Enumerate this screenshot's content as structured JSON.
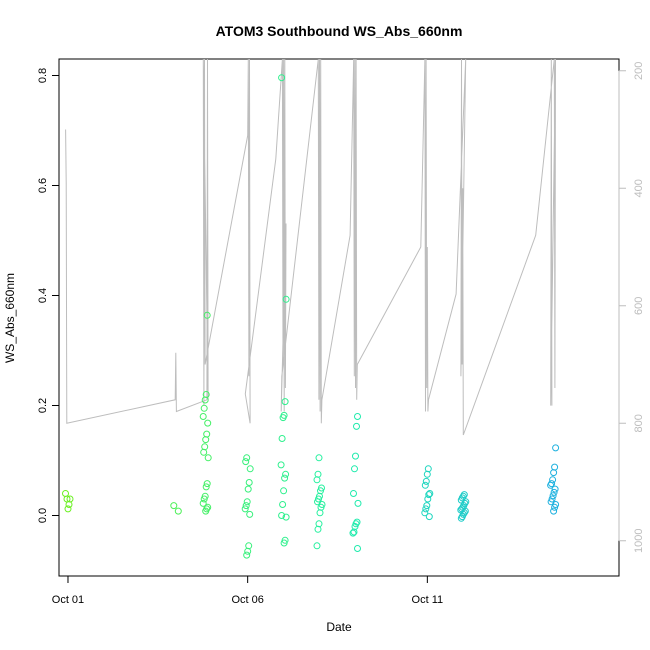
{
  "chart_data": {
    "type": "scatter",
    "title": "ATOM3 Southbound WS_Abs_660nm",
    "xlabel": "Date",
    "ylabel": "WS_Abs_660nm",
    "xlim": [
      "2016-09-30T18:00",
      "2016-10-16T08:00"
    ],
    "ylim": [
      -0.11,
      0.83
    ],
    "x_ticks": [
      {
        "date": "2016-10-01T00:00",
        "label": "Oct 01"
      },
      {
        "date": "2016-10-06T00:00",
        "label": "Oct 06"
      },
      {
        "date": "2016-10-11T00:00",
        "label": "Oct 11"
      }
    ],
    "y_ticks": [
      0.0,
      0.2,
      0.4,
      0.6,
      0.8
    ],
    "right_axis": {
      "label": "",
      "reversed": true,
      "ylim": [
        1060,
        180
      ],
      "ticks": [
        200,
        400,
        600,
        800,
        1000
      ],
      "color": "#bdbdbd"
    },
    "grid": false,
    "legend": "none",
    "colors": {
      "line": "#bdbdbd",
      "points_start": "#6ef01e",
      "points_mid": "#1ef0a8",
      "points_end": "#1e9ef0"
    },
    "series": [
      {
        "marker": "circle-open",
        "color_by": "time",
        "points": [
          [
            "2016-10-01T00:00",
            0.04
          ],
          [
            "2016-10-01T00:00",
            0.03
          ],
          [
            "2016-10-01T00:00",
            0.02
          ],
          [
            "2016-10-01T00:00",
            0.012
          ],
          [
            "2016-10-01T00:00",
            0.03
          ],
          [
            "2016-10-04T00:00",
            0.018
          ],
          [
            "2016-10-04T00:00",
            0.008
          ],
          [
            "2016-10-04T20:00",
            0.364
          ],
          [
            "2016-10-04T20:00",
            0.22
          ],
          [
            "2016-10-04T20:00",
            0.21
          ],
          [
            "2016-10-04T20:00",
            0.195
          ],
          [
            "2016-10-04T20:00",
            0.18
          ],
          [
            "2016-10-04T20:00",
            0.168
          ],
          [
            "2016-10-04T20:00",
            0.148
          ],
          [
            "2016-10-04T20:00",
            0.138
          ],
          [
            "2016-10-04T20:00",
            0.125
          ],
          [
            "2016-10-04T20:00",
            0.115
          ],
          [
            "2016-10-04T20:00",
            0.105
          ],
          [
            "2016-10-04T20:00",
            0.058
          ],
          [
            "2016-10-04T20:00",
            0.052
          ],
          [
            "2016-10-04T20:00",
            0.035
          ],
          [
            "2016-10-04T20:00",
            0.03
          ],
          [
            "2016-10-04T20:00",
            0.022
          ],
          [
            "2016-10-04T20:00",
            0.015
          ],
          [
            "2016-10-04T20:00",
            0.012
          ],
          [
            "2016-10-04T20:00",
            0.008
          ],
          [
            "2016-10-06T00:00",
            0.105
          ],
          [
            "2016-10-06T00:00",
            0.098
          ],
          [
            "2016-10-06T00:00",
            0.085
          ],
          [
            "2016-10-06T00:00",
            0.06
          ],
          [
            "2016-10-06T00:00",
            0.048
          ],
          [
            "2016-10-06T00:00",
            0.025
          ],
          [
            "2016-10-06T00:00",
            0.018
          ],
          [
            "2016-10-06T00:00",
            0.012
          ],
          [
            "2016-10-06T00:00",
            0.002
          ],
          [
            "2016-10-06T00:00",
            -0.055
          ],
          [
            "2016-10-06T00:00",
            -0.065
          ],
          [
            "2016-10-06T00:00",
            -0.072
          ],
          [
            "2016-10-07T00:00",
            0.796
          ],
          [
            "2016-10-07T00:00",
            0.393
          ],
          [
            "2016-10-07T00:00",
            0.207
          ],
          [
            "2016-10-07T00:00",
            0.182
          ],
          [
            "2016-10-07T00:00",
            0.178
          ],
          [
            "2016-10-07T00:00",
            0.14
          ],
          [
            "2016-10-07T00:00",
            0.092
          ],
          [
            "2016-10-07T00:00",
            0.075
          ],
          [
            "2016-10-07T00:00",
            0.068
          ],
          [
            "2016-10-07T00:00",
            0.045
          ],
          [
            "2016-10-07T00:00",
            0.02
          ],
          [
            "2016-10-07T00:00",
            0.0
          ],
          [
            "2016-10-07T00:00",
            -0.003
          ],
          [
            "2016-10-07T00:00",
            -0.045
          ],
          [
            "2016-10-07T00:00",
            -0.05
          ],
          [
            "2016-10-08T00:00",
            0.105
          ],
          [
            "2016-10-08T00:00",
            0.075
          ],
          [
            "2016-10-08T00:00",
            0.065
          ],
          [
            "2016-10-08T00:00",
            0.05
          ],
          [
            "2016-10-08T00:00",
            0.045
          ],
          [
            "2016-10-08T00:00",
            0.035
          ],
          [
            "2016-10-08T00:00",
            0.03
          ],
          [
            "2016-10-08T00:00",
            0.025
          ],
          [
            "2016-10-08T00:00",
            0.02
          ],
          [
            "2016-10-08T00:00",
            0.015
          ],
          [
            "2016-10-08T00:00",
            0.005
          ],
          [
            "2016-10-08T00:00",
            -0.015
          ],
          [
            "2016-10-08T00:00",
            -0.025
          ],
          [
            "2016-10-08T00:00",
            -0.055
          ],
          [
            "2016-10-09T00:00",
            0.18
          ],
          [
            "2016-10-09T00:00",
            0.162
          ],
          [
            "2016-10-09T00:00",
            0.108
          ],
          [
            "2016-10-09T00:00",
            0.085
          ],
          [
            "2016-10-09T00:00",
            0.04
          ],
          [
            "2016-10-09T00:00",
            0.022
          ],
          [
            "2016-10-09T00:00",
            -0.012
          ],
          [
            "2016-10-09T00:00",
            -0.015
          ],
          [
            "2016-10-09T00:00",
            -0.02
          ],
          [
            "2016-10-09T00:00",
            -0.03
          ],
          [
            "2016-10-09T00:00",
            -0.032
          ],
          [
            "2016-10-09T00:00",
            -0.06
          ],
          [
            "2016-10-11T00:00",
            0.085
          ],
          [
            "2016-10-11T00:00",
            0.075
          ],
          [
            "2016-10-11T00:00",
            0.062
          ],
          [
            "2016-10-11T00:00",
            0.055
          ],
          [
            "2016-10-11T00:00",
            0.04
          ],
          [
            "2016-10-11T00:00",
            0.038
          ],
          [
            "2016-10-11T00:00",
            0.03
          ],
          [
            "2016-10-11T00:00",
            0.018
          ],
          [
            "2016-10-11T00:00",
            0.012
          ],
          [
            "2016-10-11T00:00",
            0.005
          ],
          [
            "2016-10-11T00:00",
            -0.002
          ],
          [
            "2016-10-12T00:00",
            0.038
          ],
          [
            "2016-10-12T00:00",
            0.035
          ],
          [
            "2016-10-12T00:00",
            0.032
          ],
          [
            "2016-10-12T00:00",
            0.028
          ],
          [
            "2016-10-12T00:00",
            0.025
          ],
          [
            "2016-10-12T00:00",
            0.022
          ],
          [
            "2016-10-12T00:00",
            0.018
          ],
          [
            "2016-10-12T00:00",
            0.015
          ],
          [
            "2016-10-12T00:00",
            0.012
          ],
          [
            "2016-10-12T00:00",
            0.01
          ],
          [
            "2016-10-12T00:00",
            0.008
          ],
          [
            "2016-10-12T00:00",
            0.005
          ],
          [
            "2016-10-12T00:00",
            0.002
          ],
          [
            "2016-10-12T00:00",
            -0.002
          ],
          [
            "2016-10-12T00:00",
            -0.005
          ],
          [
            "2016-10-14T12:00",
            0.123
          ],
          [
            "2016-10-14T12:00",
            0.088
          ],
          [
            "2016-10-14T12:00",
            0.078
          ],
          [
            "2016-10-14T12:00",
            0.065
          ],
          [
            "2016-10-14T12:00",
            0.058
          ],
          [
            "2016-10-14T12:00",
            0.055
          ],
          [
            "2016-10-14T12:00",
            0.048
          ],
          [
            "2016-10-14T12:00",
            0.042
          ],
          [
            "2016-10-14T12:00",
            0.036
          ],
          [
            "2016-10-14T12:00",
            0.03
          ],
          [
            "2016-10-14T12:00",
            0.025
          ],
          [
            "2016-10-14T12:00",
            0.02
          ],
          [
            "2016-10-14T12:00",
            0.015
          ],
          [
            "2016-10-14T12:00",
            0.008
          ]
        ]
      },
      {
        "marker": "line",
        "axis": "right",
        "points": [
          [
            "2016-10-01T00:00",
            300
          ],
          [
            "2016-10-01T00:00",
            390
          ],
          [
            "2016-10-01T00:00",
            800
          ],
          [
            "2016-10-04T00:00",
            760
          ],
          [
            "2016-10-04T00:00",
            680
          ],
          [
            "2016-10-04T00:00",
            780
          ],
          [
            "2016-10-04T20:00",
            760
          ],
          [
            "2016-10-04T20:00",
            180
          ],
          [
            "2016-10-04T20:00",
            760
          ],
          [
            "2016-10-04T20:00",
            180
          ],
          [
            "2016-10-04T20:00",
            770
          ],
          [
            "2016-10-04T20:00",
            180
          ],
          [
            "2016-10-04T20:00",
            700
          ],
          [
            "2016-10-06T00:00",
            310
          ],
          [
            "2016-10-06T00:00",
            180
          ],
          [
            "2016-10-06T00:00",
            720
          ],
          [
            "2016-10-06T00:00",
            180
          ],
          [
            "2016-10-06T00:00",
            800
          ],
          [
            "2016-10-06T00:00",
            750
          ],
          [
            "2016-10-06T20:00",
            350
          ],
          [
            "2016-10-07T00:00",
            180
          ],
          [
            "2016-10-07T00:00",
            700
          ],
          [
            "2016-10-07T00:00",
            180
          ],
          [
            "2016-10-07T00:00",
            780
          ],
          [
            "2016-10-07T00:00",
            180
          ],
          [
            "2016-10-07T00:00",
            740
          ],
          [
            "2016-10-07T00:00",
            460
          ],
          [
            "2016-10-07T00:00",
            780
          ],
          [
            "2016-10-07T00:00",
            720
          ],
          [
            "2016-10-08T00:00",
            180
          ],
          [
            "2016-10-08T00:00",
            760
          ],
          [
            "2016-10-08T00:00",
            180
          ],
          [
            "2016-10-08T00:00",
            780
          ],
          [
            "2016-10-08T00:00",
            180
          ],
          [
            "2016-10-08T00:00",
            800
          ],
          [
            "2016-10-08T00:00",
            760
          ],
          [
            "2016-10-08T22:00",
            480
          ],
          [
            "2016-10-09T00:00",
            180
          ],
          [
            "2016-10-09T00:00",
            720
          ],
          [
            "2016-10-09T00:00",
            180
          ],
          [
            "2016-10-09T00:00",
            740
          ],
          [
            "2016-10-09T00:00",
            180
          ],
          [
            "2016-10-09T00:00",
            760
          ],
          [
            "2016-10-09T00:00",
            700
          ],
          [
            "2016-10-10T18:00",
            500
          ],
          [
            "2016-10-11T00:00",
            180
          ],
          [
            "2016-10-11T00:00",
            780
          ],
          [
            "2016-10-11T00:00",
            180
          ],
          [
            "2016-10-11T00:00",
            740
          ],
          [
            "2016-10-11T00:00",
            500
          ],
          [
            "2016-10-11T00:00",
            780
          ],
          [
            "2016-10-11T00:00",
            760
          ],
          [
            "2016-10-11T18:00",
            580
          ],
          [
            "2016-10-12T00:00",
            180
          ],
          [
            "2016-10-12T00:00",
            720
          ],
          [
            "2016-10-12T00:00",
            180
          ],
          [
            "2016-10-12T00:00",
            700
          ],
          [
            "2016-10-12T00:00",
            400
          ],
          [
            "2016-10-12T00:00",
            820
          ],
          [
            "2016-10-14T00:00",
            480
          ],
          [
            "2016-10-14T12:00",
            180
          ],
          [
            "2016-10-14T12:00",
            740
          ],
          [
            "2016-10-14T12:00",
            180
          ],
          [
            "2016-10-14T12:00",
            770
          ],
          [
            "2016-10-14T12:00",
            180
          ],
          [
            "2016-10-14T12:00",
            770
          ]
        ]
      }
    ]
  }
}
